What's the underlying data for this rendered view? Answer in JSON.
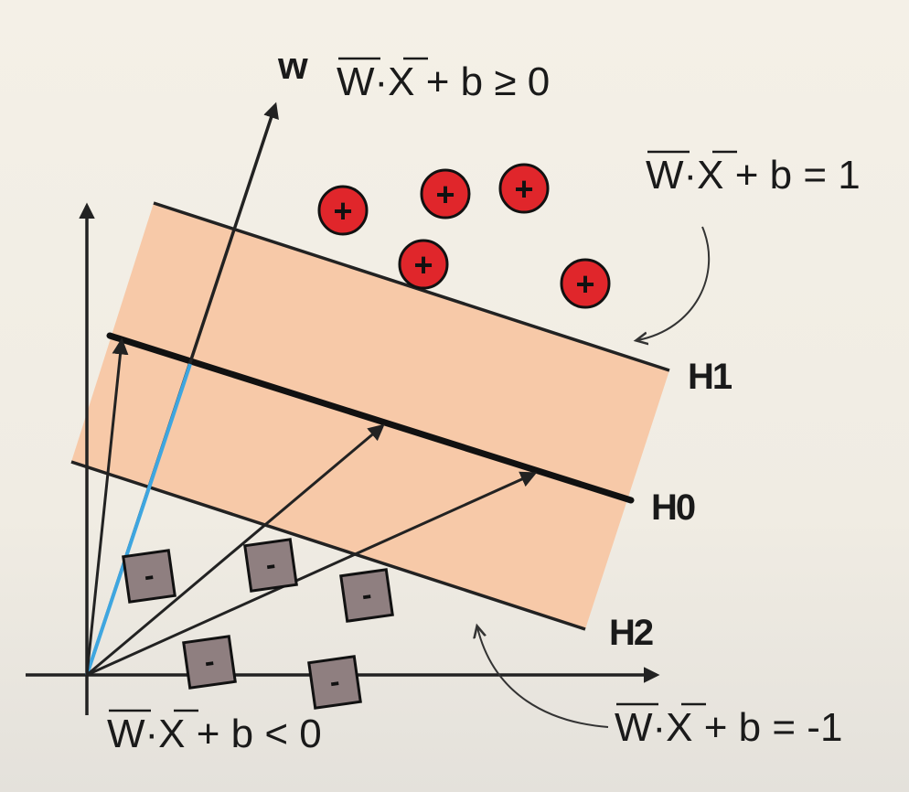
{
  "labels": {
    "w": "w",
    "eq_top": "W·X + b ≥ 0",
    "eq_h1": "W·X + b = 1",
    "eq_h2": "W·X + b = -1",
    "eq_bottom": "W·X + b < 0",
    "h1": "H1",
    "h0": "H0",
    "h2": "H2"
  },
  "points": {
    "positive_symbol": "+",
    "negative_symbol": "-"
  },
  "colors": {
    "margin_band": "#f7c9a8",
    "positive_fill": "#e0262b",
    "negative_fill": "#8f7f80",
    "normal_vector": "#3ea6e0",
    "lines": "#222222"
  }
}
